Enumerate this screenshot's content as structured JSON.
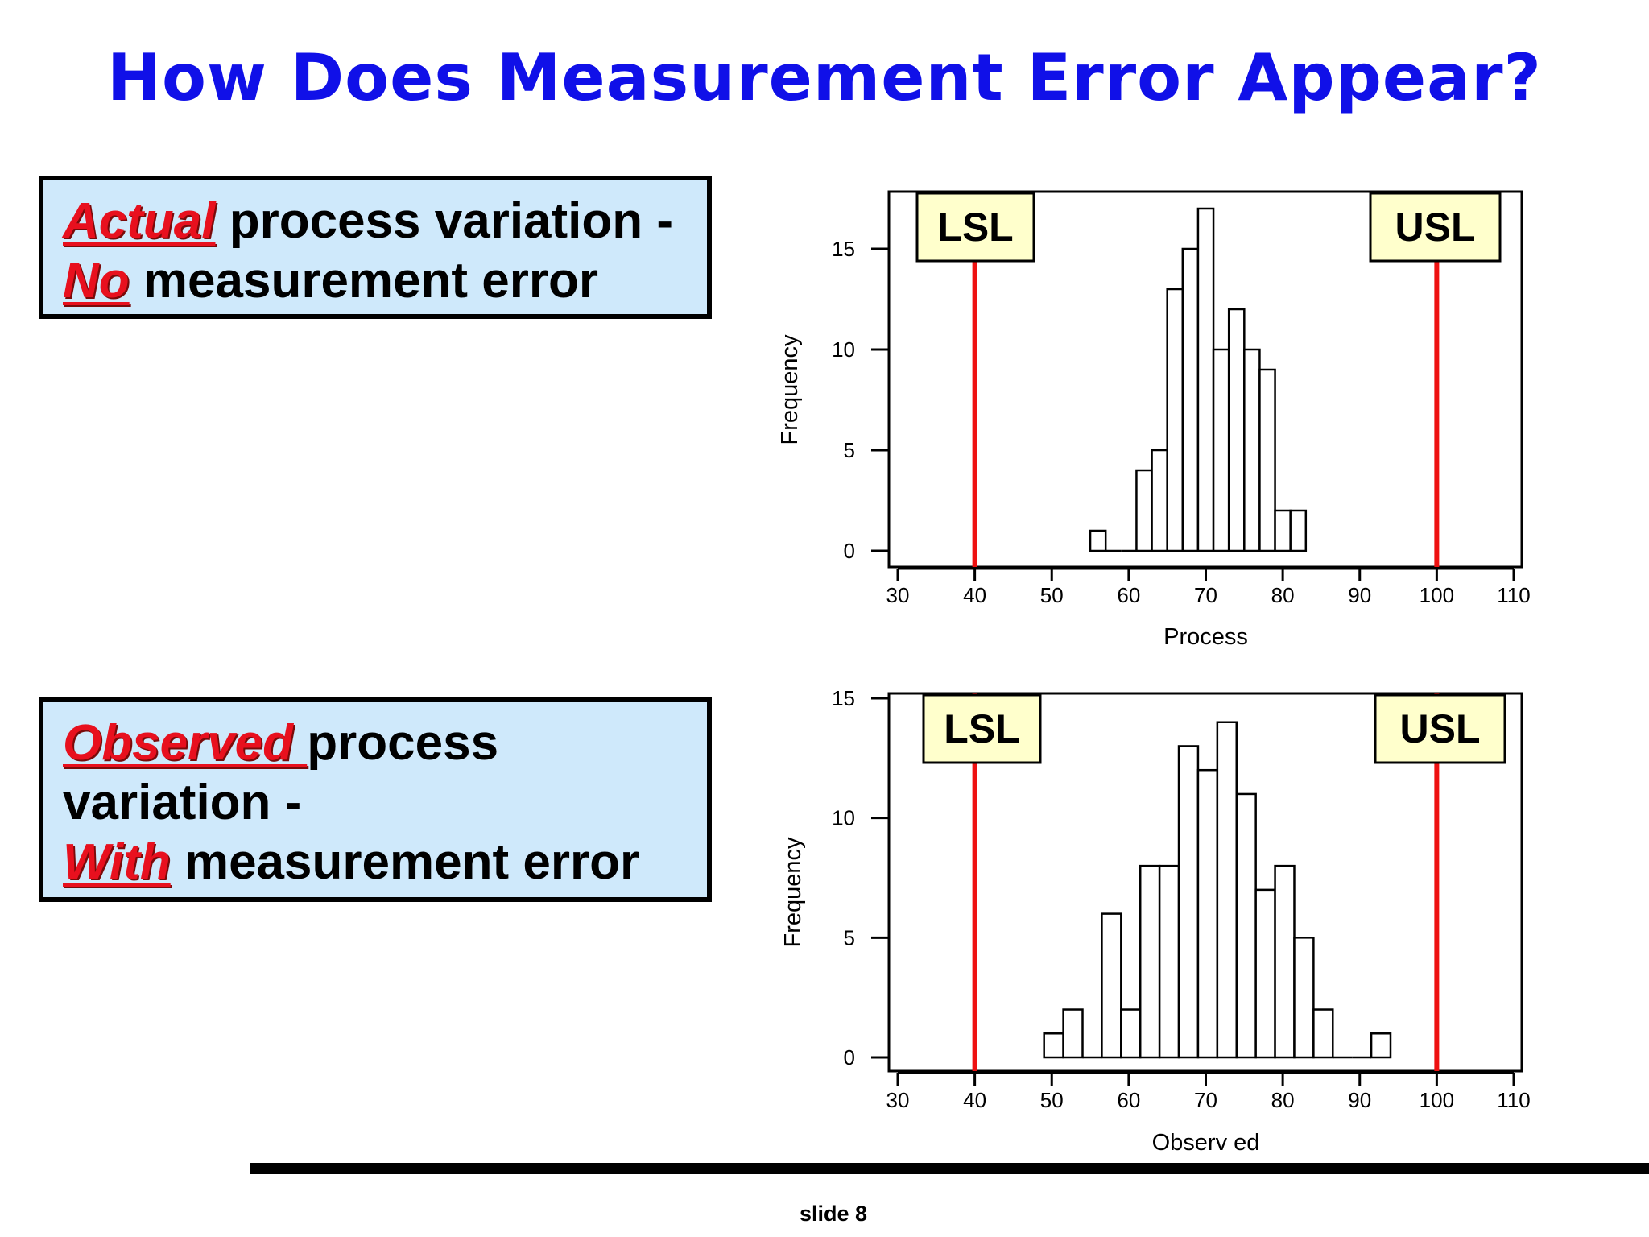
{
  "slide": {
    "title": "How Does Measurement Error Appear?",
    "slide_number": "slide  8"
  },
  "callouts": {
    "actual": {
      "emph": "Actual",
      "text1": " process variation -",
      "emph2": "No",
      "text2": " measurement error"
    },
    "observed": {
      "emph": "Observed ",
      "text1": " process",
      "line2": "variation -",
      "emph2": "With",
      "text2": " measurement error"
    }
  },
  "colors": {
    "title": "#1010e8",
    "emphasis": "#e8101e",
    "callout_bg": "#cfe9fb",
    "spec_line": "#ee1111",
    "spec_label_bg": "#ffffcc"
  },
  "chart_data": [
    {
      "type": "bar",
      "subtype": "histogram",
      "xlabel": "Process",
      "ylabel": "Frequency",
      "xlim": [
        30,
        110
      ],
      "ylim": [
        0,
        15
      ],
      "x_ticks": [
        30,
        40,
        50,
        60,
        70,
        80,
        90,
        100,
        110
      ],
      "y_ticks": [
        0,
        5,
        10,
        15
      ],
      "bin_width": 2,
      "bins": [
        {
          "start": 55,
          "count": 1
        },
        {
          "start": 57,
          "count": 0
        },
        {
          "start": 59,
          "count": 0
        },
        {
          "start": 61,
          "count": 4
        },
        {
          "start": 63,
          "count": 5
        },
        {
          "start": 65,
          "count": 13
        },
        {
          "start": 67,
          "count": 15
        },
        {
          "start": 69,
          "count": 17
        },
        {
          "start": 71,
          "count": 10
        },
        {
          "start": 73,
          "count": 12
        },
        {
          "start": 75,
          "count": 10
        },
        {
          "start": 77,
          "count": 9
        },
        {
          "start": 79,
          "count": 2
        },
        {
          "start": 81,
          "count": 2
        }
      ],
      "spec_limits": [
        {
          "label": "LSL",
          "value": 40
        },
        {
          "label": "USL",
          "value": 100
        }
      ],
      "grid": false
    },
    {
      "type": "bar",
      "subtype": "histogram",
      "xlabel": "Observ ed",
      "ylabel": "Frequency",
      "xlim": [
        30,
        110
      ],
      "ylim": [
        0,
        15
      ],
      "x_ticks": [
        30,
        40,
        50,
        60,
        70,
        80,
        90,
        100,
        110
      ],
      "y_ticks": [
        0,
        5,
        10,
        15
      ],
      "bin_width": 2.5,
      "bins": [
        {
          "start": 49,
          "count": 1
        },
        {
          "start": 51.5,
          "count": 2
        },
        {
          "start": 54,
          "count": 0
        },
        {
          "start": 56.5,
          "count": 6
        },
        {
          "start": 59,
          "count": 2
        },
        {
          "start": 61.5,
          "count": 8
        },
        {
          "start": 64,
          "count": 8
        },
        {
          "start": 66.5,
          "count": 13
        },
        {
          "start": 69,
          "count": 12
        },
        {
          "start": 71.5,
          "count": 14
        },
        {
          "start": 74,
          "count": 11
        },
        {
          "start": 76.5,
          "count": 7
        },
        {
          "start": 79,
          "count": 8
        },
        {
          "start": 81.5,
          "count": 5
        },
        {
          "start": 84,
          "count": 2
        },
        {
          "start": 86.5,
          "count": 0
        },
        {
          "start": 89,
          "count": 0
        },
        {
          "start": 91.5,
          "count": 1
        }
      ],
      "spec_limits": [
        {
          "label": "LSL",
          "value": 40
        },
        {
          "label": "USL",
          "value": 100
        }
      ],
      "grid": false
    }
  ]
}
